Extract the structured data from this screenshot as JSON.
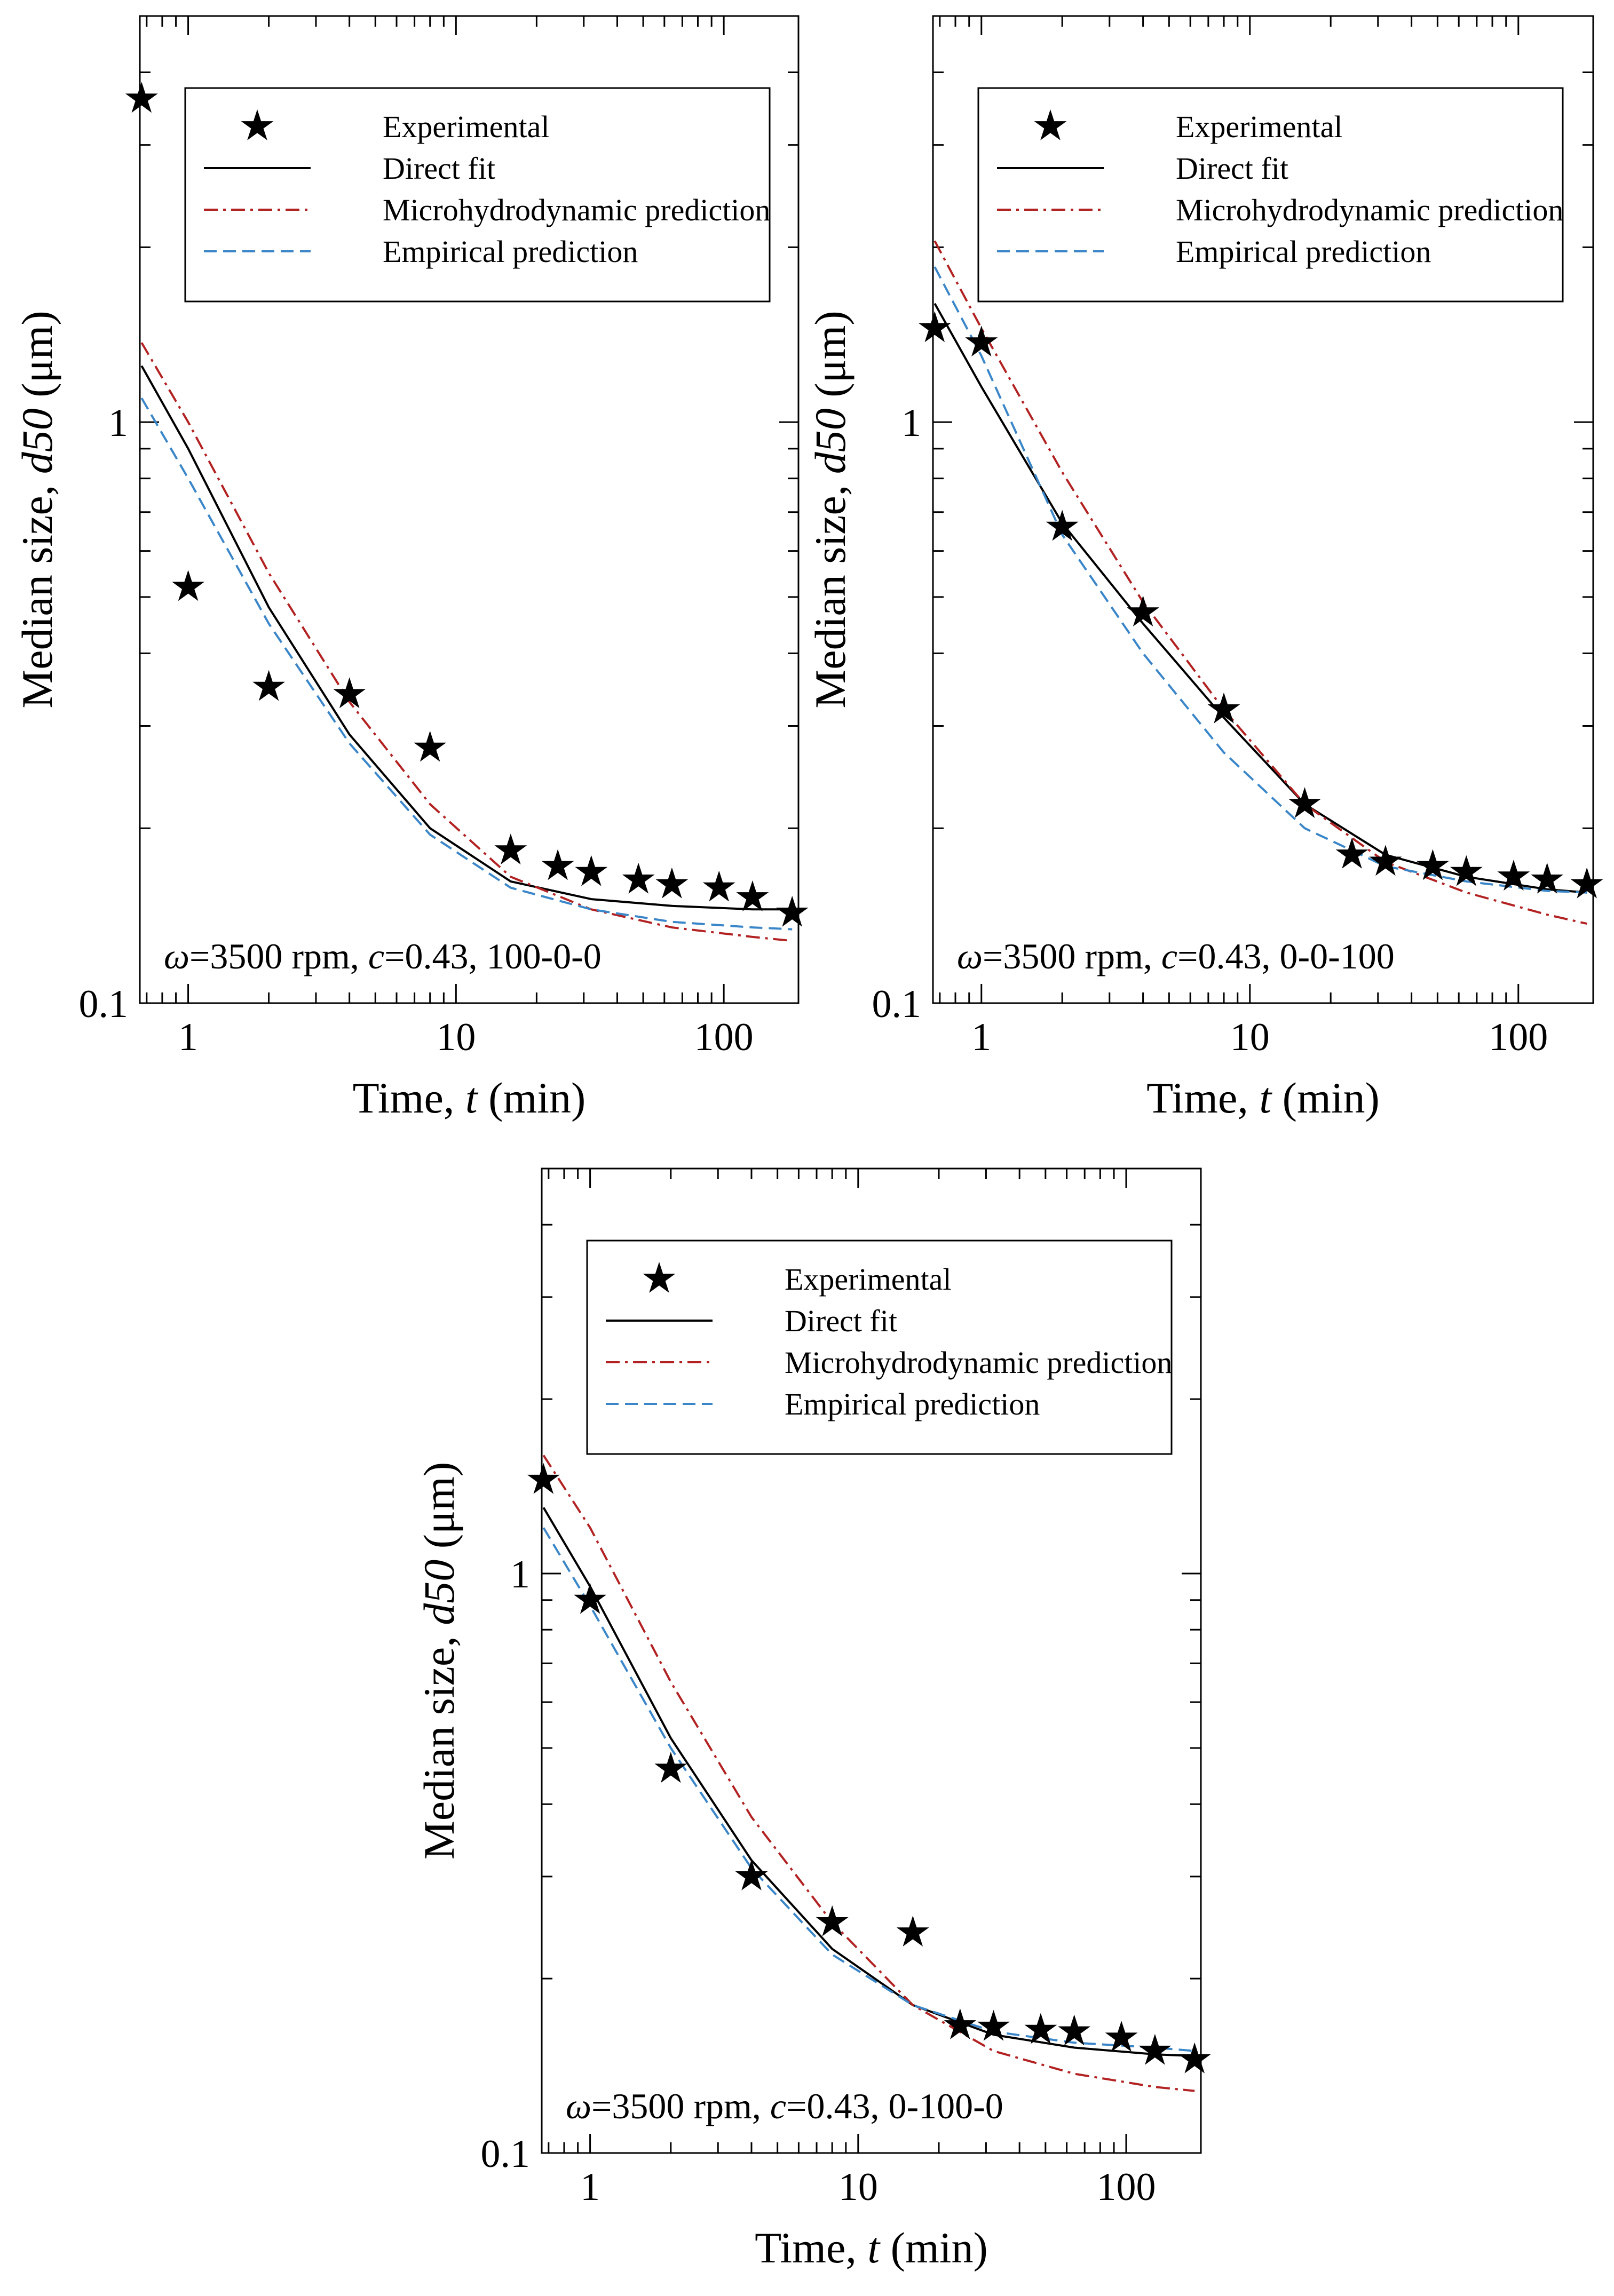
{
  "legend_labels": {
    "experimental": "Experimental",
    "direct_fit": "Direct fit",
    "micro": "Microhydrodynamic prediction",
    "empirical": "Empirical prediction"
  },
  "colors": {
    "experimental": "#000000",
    "direct_fit": "#000000",
    "micro": "#b22222",
    "empirical": "#3a86c8",
    "frame": "#000000"
  },
  "axis_titles": {
    "x": {
      "prefix": "Time, ",
      "var": "t",
      "suffix": " (min)"
    },
    "y": {
      "prefix": "Median size, ",
      "var": "d50",
      "suffix": " (μm)"
    }
  },
  "chart_data": [
    {
      "type": "line",
      "panel": "top-left",
      "xscale": "log",
      "yscale": "log",
      "xlim": [
        0.66,
        190
      ],
      "ylim": [
        0.1,
        5.0
      ],
      "x_ticks": [
        1,
        10,
        100
      ],
      "x_tick_labels": [
        "1",
        "10",
        "100"
      ],
      "y_ticks": [
        0.1,
        1
      ],
      "y_tick_labels": [
        "0.1",
        "1"
      ],
      "xlabel": "Time, t (min)",
      "ylabel": "Median size, d50 (μm)",
      "annotation": {
        "omega_symbol": "ω",
        "text": "=3500 rpm, ",
        "c_symbol": "c",
        "rest": "=0.43, 100-0-0"
      },
      "legend_position": "top",
      "series": [
        {
          "name": "Experimental",
          "style": "markers",
          "x": [
            0.67,
            1,
            2,
            4,
            8,
            16,
            24,
            32,
            48,
            64,
            96,
            128,
            180
          ],
          "y": [
            3.6,
            0.52,
            0.35,
            0.34,
            0.275,
            0.183,
            0.172,
            0.168,
            0.163,
            0.16,
            0.158,
            0.152,
            0.143
          ]
        },
        {
          "name": "Direct fit",
          "style": "solid",
          "x": [
            0.67,
            1,
            2,
            4,
            8,
            16,
            32,
            64,
            128,
            180
          ],
          "y": [
            1.25,
            0.9,
            0.48,
            0.29,
            0.2,
            0.162,
            0.151,
            0.147,
            0.145,
            0.145
          ]
        },
        {
          "name": "Microhydrodynamic prediction",
          "style": "dashdot",
          "x": [
            0.67,
            1,
            2,
            4,
            8,
            16,
            32,
            64,
            128,
            180
          ],
          "y": [
            1.37,
            1.0,
            0.55,
            0.33,
            0.22,
            0.165,
            0.145,
            0.135,
            0.13,
            0.128
          ]
        },
        {
          "name": "Empirical prediction",
          "style": "dashed",
          "x": [
            0.67,
            1,
            2,
            4,
            8,
            16,
            32,
            64,
            128,
            180
          ],
          "y": [
            1.1,
            0.8,
            0.45,
            0.28,
            0.195,
            0.158,
            0.145,
            0.138,
            0.135,
            0.134
          ]
        }
      ]
    },
    {
      "type": "line",
      "panel": "top-right",
      "xscale": "log",
      "yscale": "log",
      "xlim": [
        0.66,
        190
      ],
      "ylim": [
        0.1,
        5.0
      ],
      "x_ticks": [
        1,
        10,
        100
      ],
      "x_tick_labels": [
        "1",
        "10",
        "100"
      ],
      "y_ticks": [
        0.1,
        1
      ],
      "y_tick_labels": [
        "0.1",
        "1"
      ],
      "xlabel": "Time, t (min)",
      "ylabel": "Median size, d50 (μm)",
      "annotation": {
        "omega_symbol": "ω",
        "text": "=3500 rpm, ",
        "c_symbol": "c",
        "rest": "=0.43, 0-0-100"
      },
      "legend_position": "top",
      "series": [
        {
          "name": "Experimental",
          "style": "markers",
          "x": [
            0.67,
            1,
            2,
            4,
            8,
            16,
            24,
            32,
            48,
            64,
            96,
            128,
            180
          ],
          "y": [
            1.45,
            1.37,
            0.66,
            0.47,
            0.32,
            0.22,
            0.18,
            0.175,
            0.172,
            0.168,
            0.165,
            0.163,
            0.16
          ]
        },
        {
          "name": "Direct fit",
          "style": "solid",
          "x": [
            0.67,
            1,
            2,
            4,
            8,
            16,
            32,
            64,
            128,
            180
          ],
          "y": [
            1.6,
            1.15,
            0.67,
            0.45,
            0.31,
            0.22,
            0.18,
            0.165,
            0.157,
            0.155
          ]
        },
        {
          "name": "Microhydrodynamic prediction",
          "style": "dashdot",
          "x": [
            0.67,
            1,
            2,
            4,
            8,
            16,
            32,
            64,
            128,
            180
          ],
          "y": [
            2.05,
            1.45,
            0.82,
            0.49,
            0.32,
            0.22,
            0.175,
            0.155,
            0.142,
            0.137
          ]
        },
        {
          "name": "Empirical prediction",
          "style": "dashed",
          "x": [
            0.67,
            1,
            2,
            4,
            8,
            16,
            32,
            64,
            128,
            180
          ],
          "y": [
            1.85,
            1.3,
            0.64,
            0.4,
            0.27,
            0.2,
            0.172,
            0.162,
            0.156,
            0.155
          ]
        }
      ]
    },
    {
      "type": "line",
      "panel": "bottom-center",
      "xscale": "log",
      "yscale": "log",
      "xlim": [
        0.66,
        190
      ],
      "ylim": [
        0.1,
        5.0
      ],
      "x_ticks": [
        1,
        10,
        100
      ],
      "x_tick_labels": [
        "1",
        "10",
        "100"
      ],
      "y_ticks": [
        0.1,
        1
      ],
      "y_tick_labels": [
        "0.1",
        "1"
      ],
      "xlabel": "Time, t (min)",
      "ylabel": "Median size, d50 (μm)",
      "annotation": {
        "omega_symbol": "ω",
        "text": "=3500 rpm, ",
        "c_symbol": "c",
        "rest": "=0.43, 0-100-0"
      },
      "legend_position": "top",
      "series": [
        {
          "name": "Experimental",
          "style": "markers",
          "x": [
            0.67,
            1,
            2,
            4,
            8,
            16,
            24,
            32,
            48,
            64,
            96,
            128,
            180
          ],
          "y": [
            1.45,
            0.9,
            0.46,
            0.3,
            0.25,
            0.24,
            0.166,
            0.165,
            0.163,
            0.162,
            0.158,
            0.15,
            0.145
          ]
        },
        {
          "name": "Direct fit",
          "style": "solid",
          "x": [
            0.67,
            1,
            2,
            4,
            8,
            16,
            32,
            64,
            128,
            180
          ],
          "y": [
            1.3,
            0.95,
            0.52,
            0.32,
            0.225,
            0.18,
            0.16,
            0.152,
            0.148,
            0.147
          ]
        },
        {
          "name": "Microhydrodynamic prediction",
          "style": "dashdot",
          "x": [
            0.67,
            1,
            2,
            4,
            8,
            16,
            32,
            64,
            128,
            180
          ],
          "y": [
            1.6,
            1.2,
            0.65,
            0.38,
            0.25,
            0.18,
            0.15,
            0.137,
            0.13,
            0.128
          ]
        },
        {
          "name": "Empirical prediction",
          "style": "dashed",
          "x": [
            0.67,
            1,
            2,
            4,
            8,
            16,
            32,
            64,
            128,
            180
          ],
          "y": [
            1.2,
            0.88,
            0.5,
            0.31,
            0.22,
            0.18,
            0.162,
            0.155,
            0.152,
            0.15
          ]
        }
      ]
    }
  ]
}
